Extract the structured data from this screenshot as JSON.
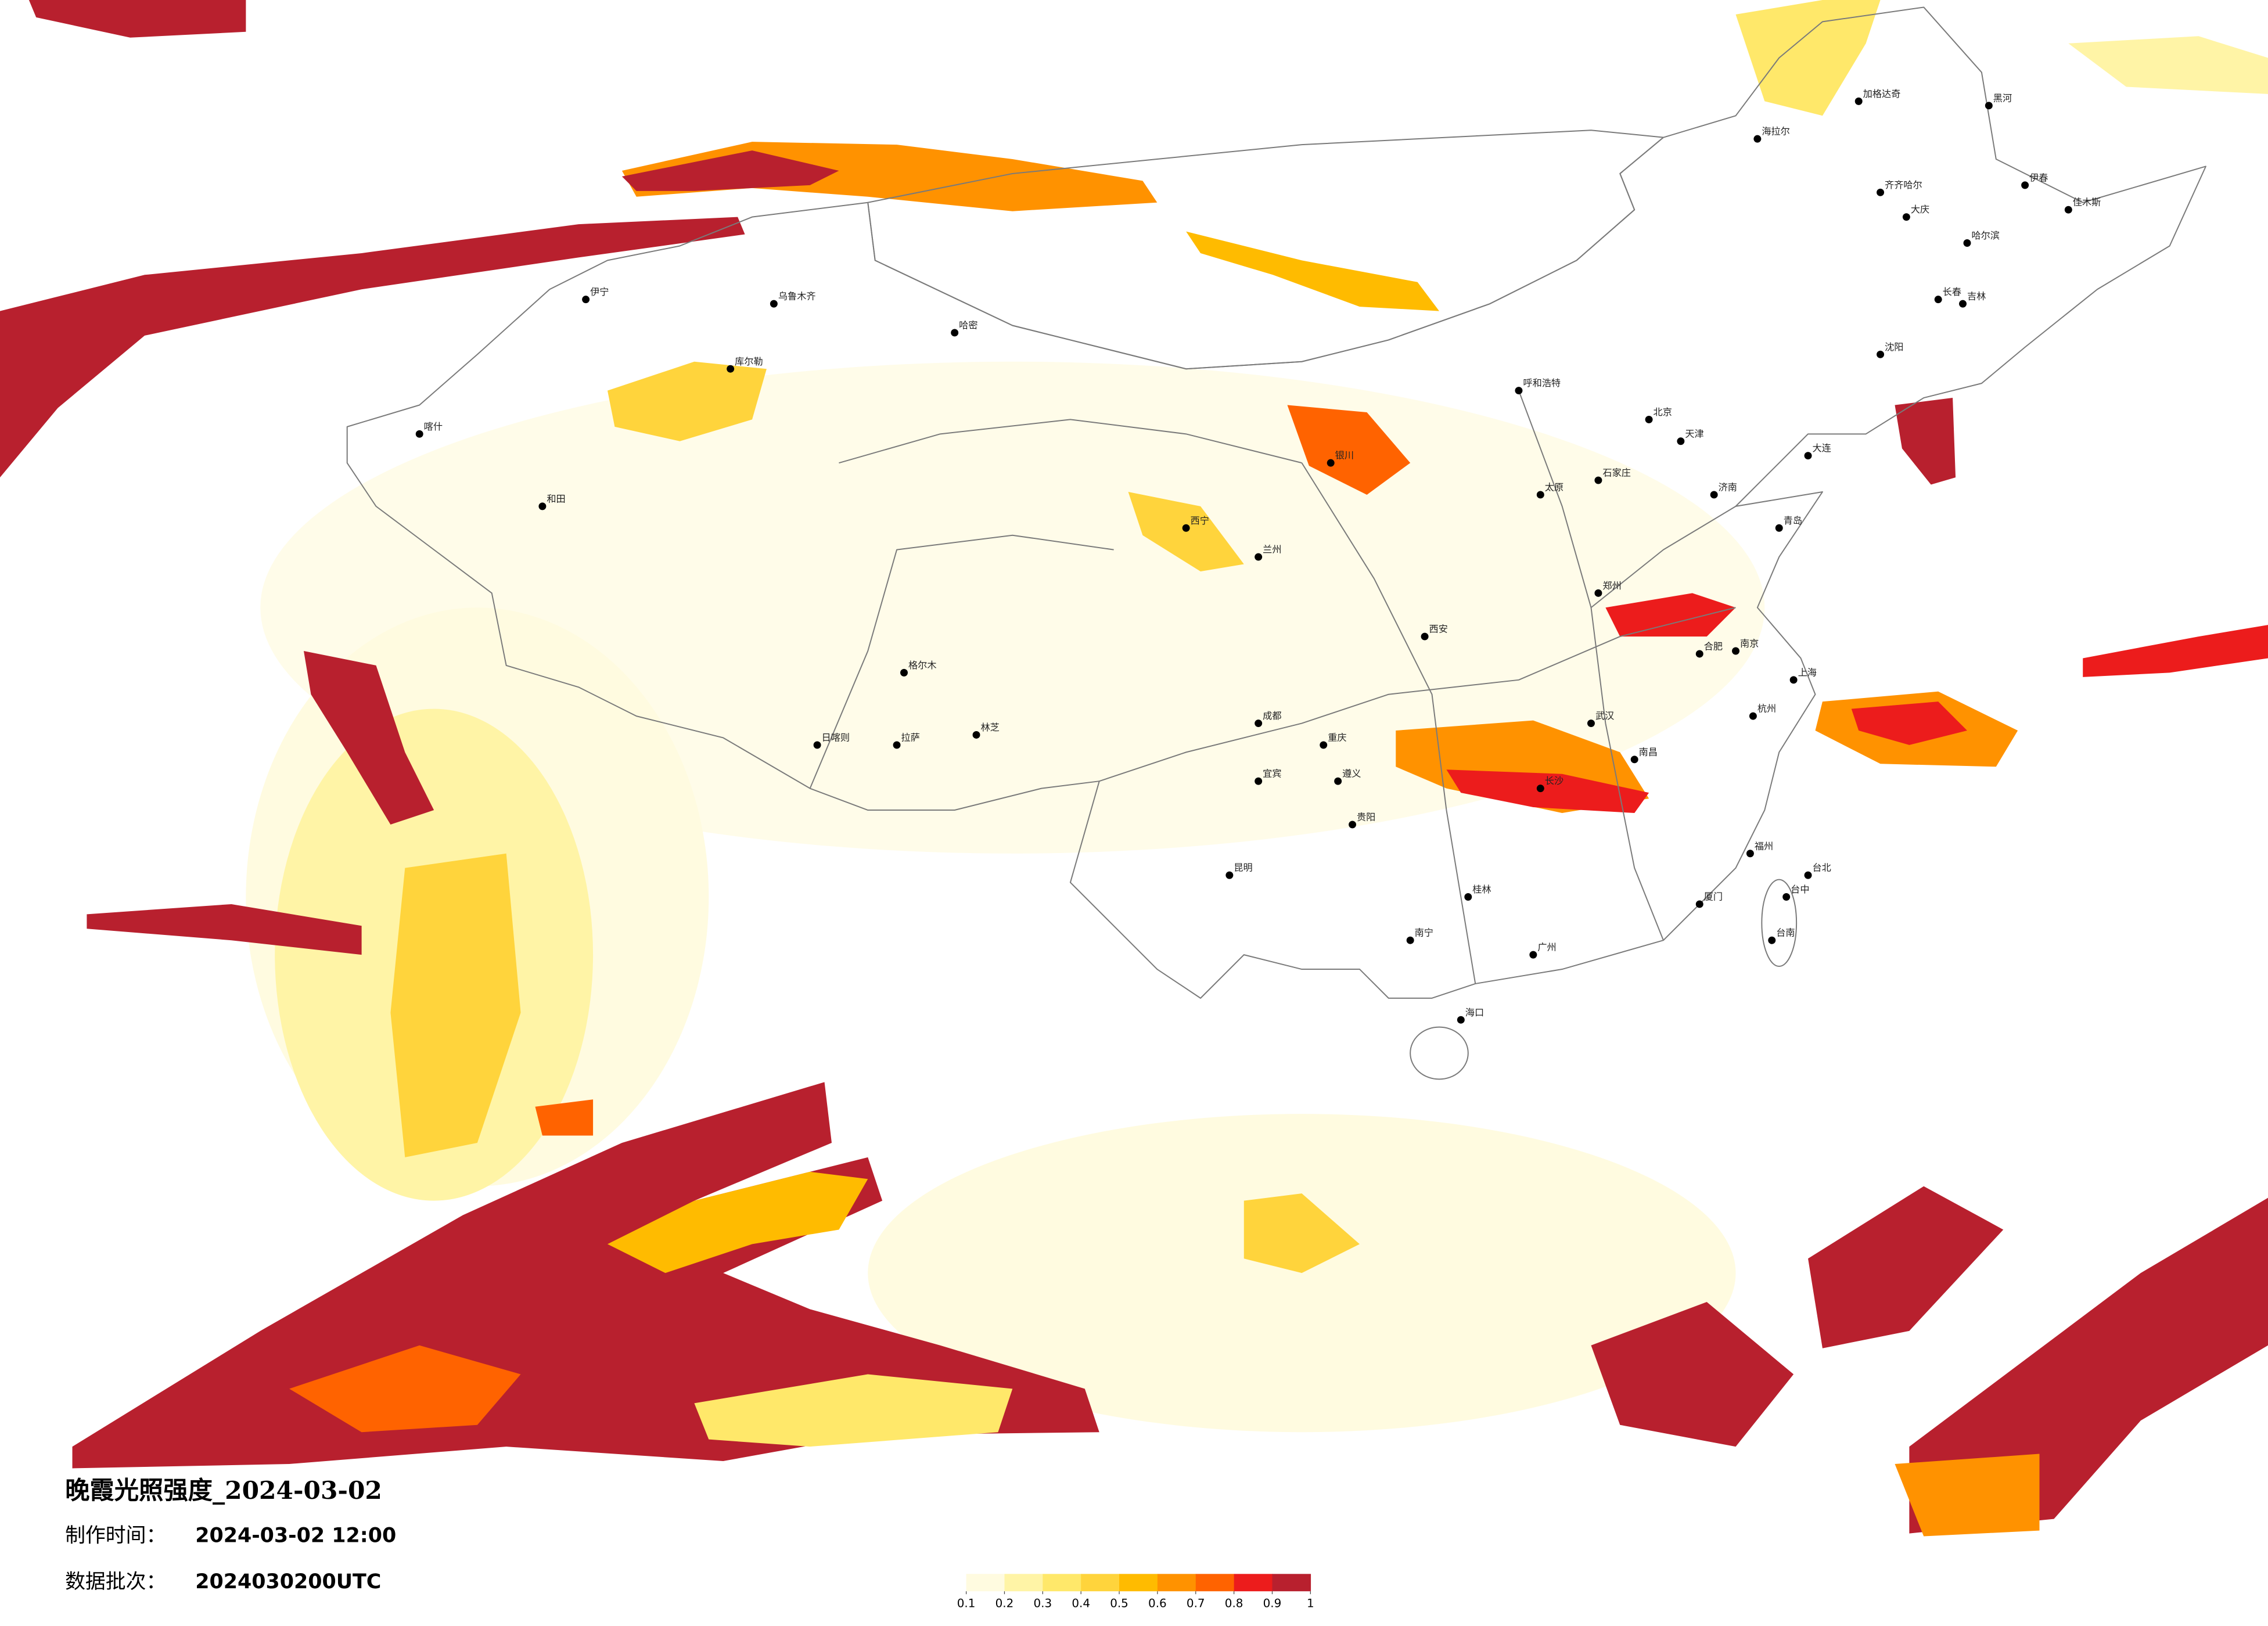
{
  "title": "晚霞光照强度_2024-03-02",
  "info": [
    {
      "label": "制作时间：",
      "value": "2024-03-02 12:00"
    },
    {
      "label": "数据批次：",
      "value": "2024030200UTC"
    }
  ],
  "legend": {
    "ticks": [
      0.1,
      0.2,
      0.3,
      0.4,
      0.5,
      0.6,
      0.7,
      0.8,
      0.9,
      1
    ],
    "colors": [
      "#fffbe0",
      "#fff4a6",
      "#ffe86a",
      "#ffd43c",
      "#ffbb00",
      "#ff9200",
      "#ff6300",
      "#ec1c1c",
      "#b8202e"
    ]
  },
  "cities": [
    "海拉尔",
    "加格达奇",
    "黑河",
    "齐齐哈尔",
    "大庆",
    "哈尔滨",
    "伊春",
    "佳木斯",
    "长春",
    "吉林",
    "沈阳",
    "北京",
    "天津",
    "石家庄",
    "太原",
    "呼和浩特",
    "银川",
    "兰州",
    "西宁",
    "西安",
    "郑州",
    "济南",
    "南京",
    "上海",
    "杭州",
    "合肥",
    "武汉",
    "长沙",
    "南昌",
    "福州",
    "广州",
    "南宁",
    "海口",
    "贵阳",
    "昆明",
    "成都",
    "重庆",
    "拉萨",
    "日喀则",
    "乌鲁木齐",
    "伊宁",
    "喀什",
    "和田",
    "哈密",
    "库尔勒",
    "格尔木",
    "台北",
    "台中",
    "台南",
    "大连",
    "青岛",
    "厦门",
    "桂林",
    "遵义",
    "宜宾",
    "林芝"
  ]
}
